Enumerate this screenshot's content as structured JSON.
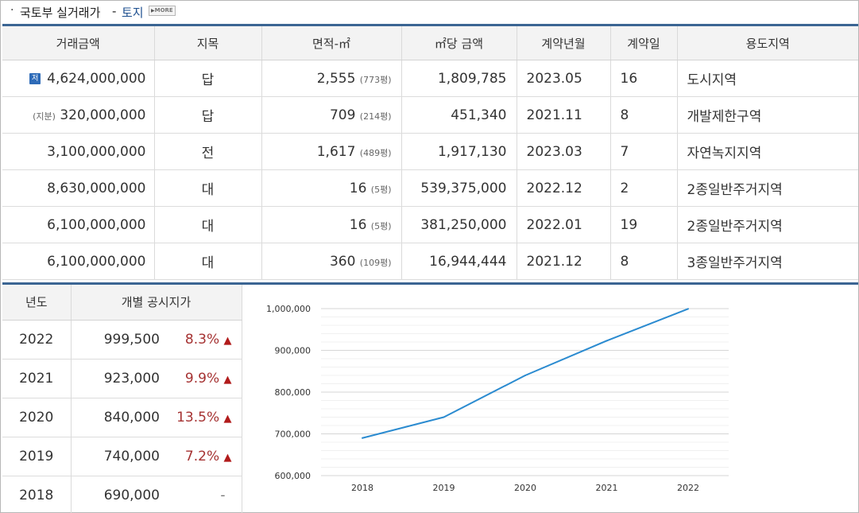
{
  "header": {
    "bullet": "·",
    "title": "국토부 실거래가",
    "dash": "-",
    "subtitle": "토지",
    "more_label": "MORE"
  },
  "transactions": {
    "columns": [
      "거래금액",
      "지목",
      "면적-㎡",
      "㎡당 금액",
      "계약년월",
      "계약일",
      "용도지역"
    ],
    "rows": [
      {
        "prefix": "저",
        "price": "4,624,000,000",
        "category": "답",
        "area": "2,555",
        "pyeong": "(773평)",
        "unit_price": "1,809,785",
        "ym": "2023.05",
        "day": "16",
        "zone": "도시지역"
      },
      {
        "prefix": "(지분)",
        "price": "320,000,000",
        "category": "답",
        "area": "709",
        "pyeong": "(214평)",
        "unit_price": "451,340",
        "ym": "2021.11",
        "day": "8",
        "zone": "개발제한구역"
      },
      {
        "prefix": "",
        "price": "3,100,000,000",
        "category": "전",
        "area": "1,617",
        "pyeong": "(489평)",
        "unit_price": "1,917,130",
        "ym": "2023.03",
        "day": "7",
        "zone": "자연녹지지역"
      },
      {
        "prefix": "",
        "price": "8,630,000,000",
        "category": "대",
        "area": "16",
        "pyeong": "(5평)",
        "unit_price": "539,375,000",
        "ym": "2022.12",
        "day": "2",
        "zone": "2종일반주거지역"
      },
      {
        "prefix": "",
        "price": "6,100,000,000",
        "category": "대",
        "area": "16",
        "pyeong": "(5평)",
        "unit_price": "381,250,000",
        "ym": "2022.01",
        "day": "19",
        "zone": "2종일반주거지역"
      },
      {
        "prefix": "",
        "price": "6,100,000,000",
        "category": "대",
        "area": "360",
        "pyeong": "(109평)",
        "unit_price": "16,944,444",
        "ym": "2021.12",
        "day": "8",
        "zone": "3종일반주거지역"
      }
    ]
  },
  "land_prices": {
    "columns": [
      "년도",
      "개별 공시지가"
    ],
    "rows": [
      {
        "year": "2022",
        "price": "999,500",
        "change": "8.3%",
        "arrow": "▲"
      },
      {
        "year": "2021",
        "price": "923,000",
        "change": "9.9%",
        "arrow": "▲"
      },
      {
        "year": "2020",
        "price": "840,000",
        "change": "13.5%",
        "arrow": "▲"
      },
      {
        "year": "2019",
        "price": "740,000",
        "change": "7.2%",
        "arrow": "▲"
      },
      {
        "year": "2018",
        "price": "690,000",
        "change": "-",
        "arrow": ""
      }
    ]
  },
  "colors": {
    "accent": "#3b6593",
    "line": "#2b8bd0",
    "up": "#a53232"
  },
  "chart_data": {
    "type": "line",
    "title": "",
    "xlabel": "",
    "ylabel": "",
    "x": [
      "2018",
      "2019",
      "2020",
      "2021",
      "2022"
    ],
    "series": [
      {
        "values": [
          690000,
          740000,
          840000,
          923000,
          999500
        ]
      }
    ],
    "ylim": [
      600000,
      1000000
    ],
    "yticks": [
      600000,
      700000,
      800000,
      900000,
      1000000
    ],
    "ytick_labels": [
      "600,000",
      "700,000",
      "800,000",
      "900,000",
      "1,000,000"
    ],
    "grid": true,
    "legend": "none"
  }
}
